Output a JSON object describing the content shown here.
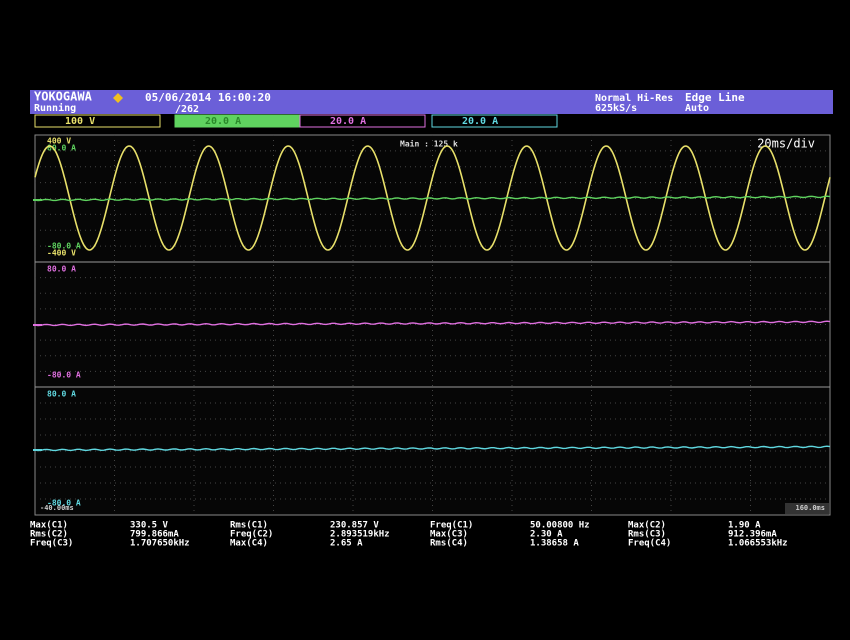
{
  "header": {
    "brand": "YOKOGAWA",
    "datetime": "05/06/2014 16:00:20",
    "status": "Running",
    "record": "/262",
    "acq_mode": "Normal Hi-Res",
    "sample_rate": "625kS/s",
    "trigger": "Edge Line",
    "trigger_mode": "Auto"
  },
  "channels": [
    {
      "label": "100 V",
      "color": "#e8e06a"
    },
    {
      "label": "20.0 A",
      "color": "#5fd35f"
    },
    {
      "label": "20.0 A",
      "color": "#e070e0"
    },
    {
      "label": "20.0 A",
      "color": "#60d8e0"
    }
  ],
  "main": "Main : 125 k",
  "timebase": "20ms/div",
  "panels": [
    {
      "labels": [
        {
          "text": "400 V",
          "color": "#e8e06a"
        },
        {
          "text": "80.0 A",
          "color": "#5fd35f"
        },
        {
          "text": "-80.0 A",
          "color": "#5fd35f"
        },
        {
          "text": "-400 V",
          "color": "#e8e06a"
        }
      ]
    },
    {
      "labels": [
        {
          "text": "80.0 A",
          "color": "#e070e0"
        },
        {
          "text": "-80.0 A",
          "color": "#e070e0"
        }
      ]
    },
    {
      "labels": [
        {
          "text": "80.0 A",
          "color": "#60d8e0"
        },
        {
          "text": "-80.0 A",
          "color": "#60d8e0"
        }
      ]
    }
  ],
  "time_start": "-40.00ms",
  "time_end": "160.0ms",
  "measurements": [
    [
      [
        "Max(C1)",
        "330.5 V"
      ],
      [
        "Rms(C2)",
        "799.866mA"
      ],
      [
        "Freq(C3)",
        "1.707650kHz"
      ]
    ],
    [
      [
        "Rms(C1)",
        "230.857 V"
      ],
      [
        "Freq(C2)",
        "2.893519kHz"
      ],
      [
        "Max(C4)",
        "2.65 A"
      ]
    ],
    [
      [
        "Freq(C1)",
        "50.00800 Hz"
      ],
      [
        "Max(C3)",
        "2.30 A"
      ],
      [
        "Rms(C4)",
        "1.38658 A"
      ]
    ],
    [
      [
        "Max(C2)",
        "1.90 A"
      ],
      [
        "Rms(C3)",
        "912.396mA"
      ],
      [
        "Freq(C4)",
        "1.066553kHz"
      ]
    ]
  ]
}
